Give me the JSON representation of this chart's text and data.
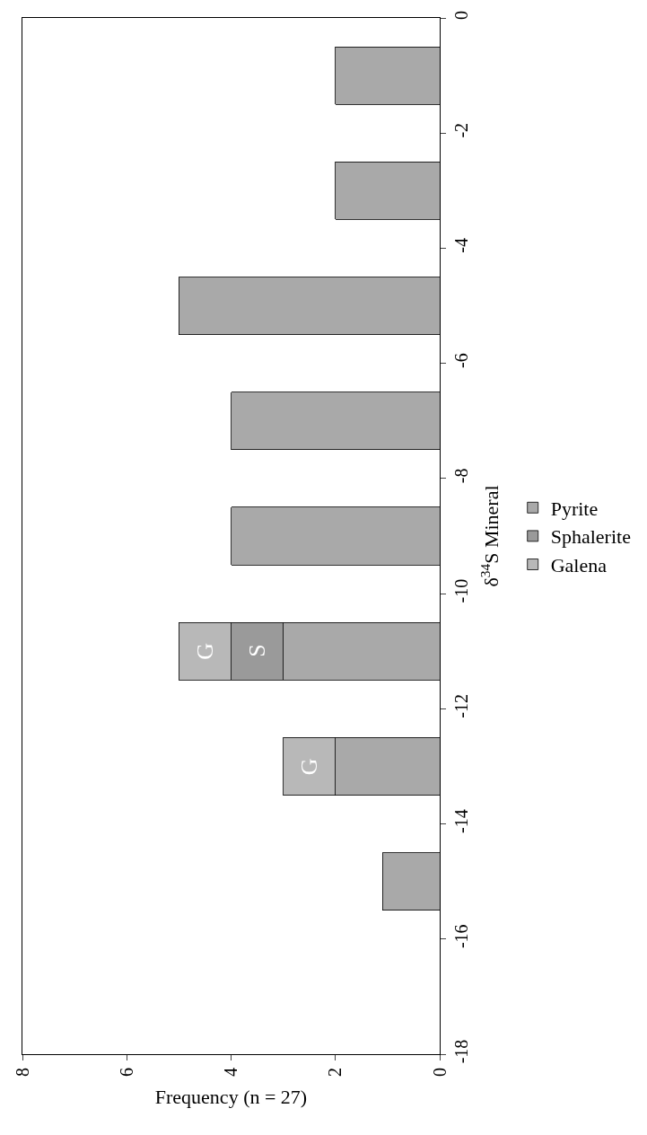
{
  "chart_data": {
    "type": "bar",
    "orientation": "horizontal",
    "stacked": true,
    "xlabel": "Frequency (n = 27)",
    "ylabel": "δ$^{34}$S Mineral",
    "x": [
      -15,
      -13,
      -11,
      -9,
      -7,
      -5,
      -3,
      -1
    ],
    "series": [
      {
        "name": "Pyrite",
        "color": "#a9a9a9",
        "values": [
          1.1,
          2,
          3,
          4,
          4,
          5,
          2,
          2
        ]
      },
      {
        "name": "Sphalerite",
        "color": "#9a9a9a",
        "values": [
          null,
          null,
          1,
          null,
          null,
          null,
          null,
          null
        ]
      },
      {
        "name": "Galena",
        "color": "#b8b8b8",
        "values": [
          null,
          1,
          1,
          null,
          null,
          null,
          null,
          null
        ]
      }
    ],
    "xlim": [
      8,
      0
    ],
    "xticks": [
      0,
      2,
      4,
      6,
      8
    ],
    "ylim": [
      -18,
      0
    ],
    "yticks": [
      -18,
      -16,
      -14,
      -12,
      -10,
      -8,
      -6,
      -4,
      -2,
      0
    ],
    "annotations": [
      "S",
      "G",
      "G"
    ],
    "legend": "right"
  }
}
